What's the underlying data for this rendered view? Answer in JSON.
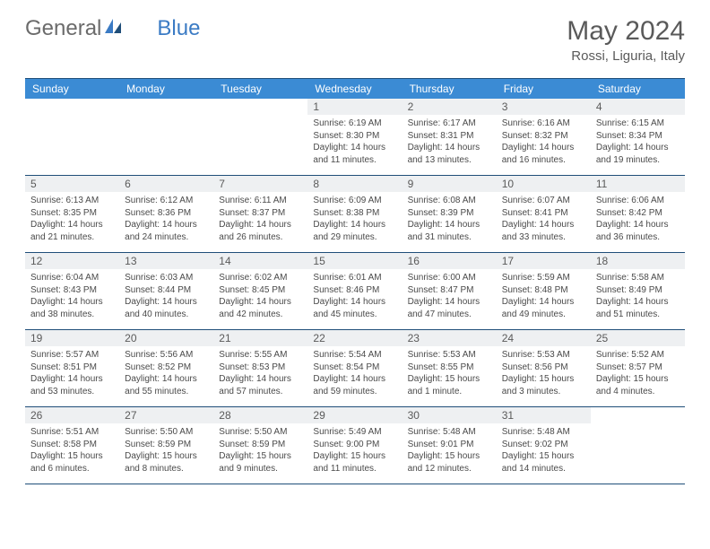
{
  "logo": {
    "text1": "General",
    "text2": "Blue"
  },
  "title": "May 2024",
  "location": "Rossi, Liguria, Italy",
  "colors": {
    "header_bg": "#3b8bd4",
    "border": "#1f4e79",
    "daynum_bg": "#eef0f2",
    "text": "#5a5a5a"
  },
  "day_names": [
    "Sunday",
    "Monday",
    "Tuesday",
    "Wednesday",
    "Thursday",
    "Friday",
    "Saturday"
  ],
  "weeks": [
    [
      null,
      null,
      null,
      {
        "n": "1",
        "sr": "6:19 AM",
        "ss": "8:30 PM",
        "dl1": "Daylight: 14 hours",
        "dl2": "and 11 minutes."
      },
      {
        "n": "2",
        "sr": "6:17 AM",
        "ss": "8:31 PM",
        "dl1": "Daylight: 14 hours",
        "dl2": "and 13 minutes."
      },
      {
        "n": "3",
        "sr": "6:16 AM",
        "ss": "8:32 PM",
        "dl1": "Daylight: 14 hours",
        "dl2": "and 16 minutes."
      },
      {
        "n": "4",
        "sr": "6:15 AM",
        "ss": "8:34 PM",
        "dl1": "Daylight: 14 hours",
        "dl2": "and 19 minutes."
      }
    ],
    [
      {
        "n": "5",
        "sr": "6:13 AM",
        "ss": "8:35 PM",
        "dl1": "Daylight: 14 hours",
        "dl2": "and 21 minutes."
      },
      {
        "n": "6",
        "sr": "6:12 AM",
        "ss": "8:36 PM",
        "dl1": "Daylight: 14 hours",
        "dl2": "and 24 minutes."
      },
      {
        "n": "7",
        "sr": "6:11 AM",
        "ss": "8:37 PM",
        "dl1": "Daylight: 14 hours",
        "dl2": "and 26 minutes."
      },
      {
        "n": "8",
        "sr": "6:09 AM",
        "ss": "8:38 PM",
        "dl1": "Daylight: 14 hours",
        "dl2": "and 29 minutes."
      },
      {
        "n": "9",
        "sr": "6:08 AM",
        "ss": "8:39 PM",
        "dl1": "Daylight: 14 hours",
        "dl2": "and 31 minutes."
      },
      {
        "n": "10",
        "sr": "6:07 AM",
        "ss": "8:41 PM",
        "dl1": "Daylight: 14 hours",
        "dl2": "and 33 minutes."
      },
      {
        "n": "11",
        "sr": "6:06 AM",
        "ss": "8:42 PM",
        "dl1": "Daylight: 14 hours",
        "dl2": "and 36 minutes."
      }
    ],
    [
      {
        "n": "12",
        "sr": "6:04 AM",
        "ss": "8:43 PM",
        "dl1": "Daylight: 14 hours",
        "dl2": "and 38 minutes."
      },
      {
        "n": "13",
        "sr": "6:03 AM",
        "ss": "8:44 PM",
        "dl1": "Daylight: 14 hours",
        "dl2": "and 40 minutes."
      },
      {
        "n": "14",
        "sr": "6:02 AM",
        "ss": "8:45 PM",
        "dl1": "Daylight: 14 hours",
        "dl2": "and 42 minutes."
      },
      {
        "n": "15",
        "sr": "6:01 AM",
        "ss": "8:46 PM",
        "dl1": "Daylight: 14 hours",
        "dl2": "and 45 minutes."
      },
      {
        "n": "16",
        "sr": "6:00 AM",
        "ss": "8:47 PM",
        "dl1": "Daylight: 14 hours",
        "dl2": "and 47 minutes."
      },
      {
        "n": "17",
        "sr": "5:59 AM",
        "ss": "8:48 PM",
        "dl1": "Daylight: 14 hours",
        "dl2": "and 49 minutes."
      },
      {
        "n": "18",
        "sr": "5:58 AM",
        "ss": "8:49 PM",
        "dl1": "Daylight: 14 hours",
        "dl2": "and 51 minutes."
      }
    ],
    [
      {
        "n": "19",
        "sr": "5:57 AM",
        "ss": "8:51 PM",
        "dl1": "Daylight: 14 hours",
        "dl2": "and 53 minutes."
      },
      {
        "n": "20",
        "sr": "5:56 AM",
        "ss": "8:52 PM",
        "dl1": "Daylight: 14 hours",
        "dl2": "and 55 minutes."
      },
      {
        "n": "21",
        "sr": "5:55 AM",
        "ss": "8:53 PM",
        "dl1": "Daylight: 14 hours",
        "dl2": "and 57 minutes."
      },
      {
        "n": "22",
        "sr": "5:54 AM",
        "ss": "8:54 PM",
        "dl1": "Daylight: 14 hours",
        "dl2": "and 59 minutes."
      },
      {
        "n": "23",
        "sr": "5:53 AM",
        "ss": "8:55 PM",
        "dl1": "Daylight: 15 hours",
        "dl2": "and 1 minute."
      },
      {
        "n": "24",
        "sr": "5:53 AM",
        "ss": "8:56 PM",
        "dl1": "Daylight: 15 hours",
        "dl2": "and 3 minutes."
      },
      {
        "n": "25",
        "sr": "5:52 AM",
        "ss": "8:57 PM",
        "dl1": "Daylight: 15 hours",
        "dl2": "and 4 minutes."
      }
    ],
    [
      {
        "n": "26",
        "sr": "5:51 AM",
        "ss": "8:58 PM",
        "dl1": "Daylight: 15 hours",
        "dl2": "and 6 minutes."
      },
      {
        "n": "27",
        "sr": "5:50 AM",
        "ss": "8:59 PM",
        "dl1": "Daylight: 15 hours",
        "dl2": "and 8 minutes."
      },
      {
        "n": "28",
        "sr": "5:50 AM",
        "ss": "8:59 PM",
        "dl1": "Daylight: 15 hours",
        "dl2": "and 9 minutes."
      },
      {
        "n": "29",
        "sr": "5:49 AM",
        "ss": "9:00 PM",
        "dl1": "Daylight: 15 hours",
        "dl2": "and 11 minutes."
      },
      {
        "n": "30",
        "sr": "5:48 AM",
        "ss": "9:01 PM",
        "dl1": "Daylight: 15 hours",
        "dl2": "and 12 minutes."
      },
      {
        "n": "31",
        "sr": "5:48 AM",
        "ss": "9:02 PM",
        "dl1": "Daylight: 15 hours",
        "dl2": "and 14 minutes."
      },
      null
    ]
  ]
}
